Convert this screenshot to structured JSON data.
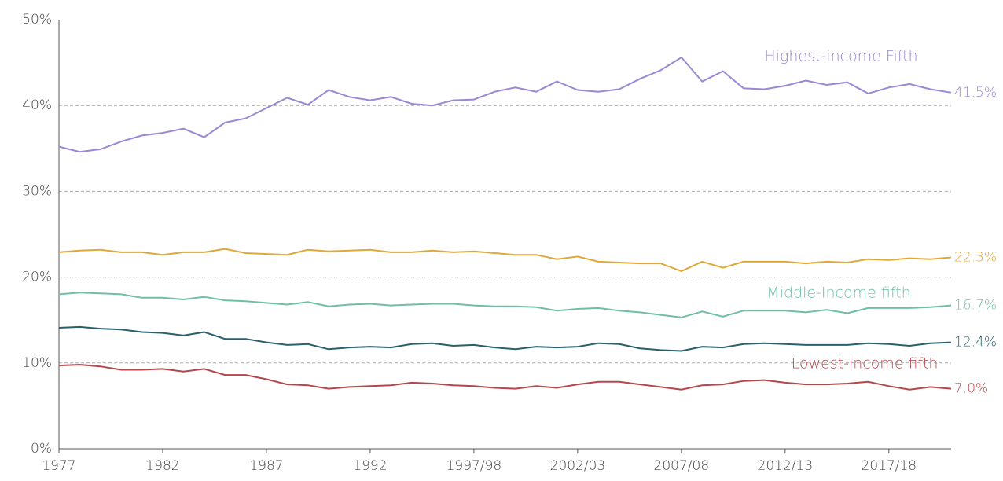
{
  "chart_data": {
    "type": "line",
    "categories": [
      "1977",
      null,
      null,
      null,
      null,
      "1982",
      null,
      null,
      null,
      null,
      "1987",
      null,
      null,
      null,
      null,
      "1992",
      null,
      null,
      null,
      null,
      "1997/98",
      null,
      null,
      null,
      null,
      "2002/03",
      null,
      null,
      null,
      null,
      "2007/08",
      null,
      null,
      null,
      null,
      "2012/13",
      null,
      null,
      null,
      null,
      "2017/18",
      null,
      null,
      null
    ],
    "ylim": [
      0,
      50
    ],
    "yticks": [
      {
        "value": 0,
        "label": "0%"
      },
      {
        "value": 10,
        "label": "10%"
      },
      {
        "value": 20,
        "label": "20%"
      },
      {
        "value": 30,
        "label": "30%"
      },
      {
        "value": 40,
        "label": "40%"
      },
      {
        "value": 50,
        "label": "50%"
      }
    ],
    "grid": true,
    "series": [
      {
        "name": "Highest-income Fifth",
        "color": "#9b87d4",
        "values": [
          35.2,
          34.6,
          34.9,
          35.8,
          36.5,
          36.8,
          37.3,
          36.3,
          38.0,
          38.5,
          39.7,
          40.9,
          40.1,
          41.8,
          41.0,
          40.6,
          41.0,
          40.2,
          40.0,
          40.6,
          40.7,
          41.6,
          42.1,
          41.6,
          42.8,
          41.8,
          41.6,
          41.9,
          43.1,
          44.1,
          45.6,
          42.8,
          44.0,
          42.0,
          41.9,
          42.3,
          42.9,
          42.4,
          42.7,
          41.4,
          42.1,
          42.5,
          41.9,
          41.5
        ],
        "value_labels": [
          null,
          null,
          null,
          null,
          null,
          null,
          null,
          null,
          null,
          null,
          null,
          null,
          null,
          null,
          null,
          null,
          null,
          null,
          null,
          null,
          null,
          null,
          null,
          null,
          null,
          null,
          null,
          null,
          null,
          null,
          null,
          null,
          null,
          null,
          null,
          null,
          null,
          null,
          null,
          null,
          null,
          null,
          null,
          "41.5%"
        ]
      },
      {
        "color": "#e0a83a",
        "values": [
          22.9,
          23.1,
          23.2,
          22.9,
          22.9,
          22.6,
          22.9,
          22.9,
          23.3,
          22.8,
          22.7,
          22.6,
          23.2,
          23.0,
          23.1,
          23.2,
          22.9,
          22.9,
          23.1,
          22.9,
          23.0,
          22.8,
          22.6,
          22.6,
          22.1,
          22.4,
          21.8,
          21.7,
          21.6,
          21.6,
          20.7,
          21.8,
          21.1,
          21.8,
          21.8,
          21.8,
          21.6,
          21.8,
          21.7,
          22.1,
          22.0,
          22.2,
          22.1,
          22.3
        ],
        "value_labels": [
          null,
          null,
          null,
          null,
          null,
          null,
          null,
          null,
          null,
          null,
          null,
          null,
          null,
          null,
          null,
          null,
          null,
          null,
          null,
          null,
          null,
          null,
          null,
          null,
          null,
          null,
          null,
          null,
          null,
          null,
          null,
          null,
          null,
          null,
          null,
          null,
          null,
          null,
          null,
          null,
          null,
          null,
          null,
          "22.3%"
        ]
      },
      {
        "name": "Middle-Income fifth",
        "color": "#6fbfa5",
        "values": [
          18.0,
          18.2,
          18.1,
          18.0,
          17.6,
          17.6,
          17.4,
          17.7,
          17.3,
          17.2,
          17.0,
          16.8,
          17.1,
          16.6,
          16.8,
          16.9,
          16.7,
          16.8,
          16.9,
          16.9,
          16.7,
          16.6,
          16.6,
          16.5,
          16.1,
          16.3,
          16.4,
          16.1,
          15.9,
          15.6,
          15.3,
          16.0,
          15.4,
          16.1,
          16.1,
          16.1,
          15.9,
          16.2,
          15.8,
          16.4,
          16.4,
          16.4,
          16.5,
          16.7
        ],
        "value_labels": [
          null,
          null,
          null,
          null,
          null,
          null,
          null,
          null,
          null,
          null,
          null,
          null,
          null,
          null,
          null,
          null,
          null,
          null,
          null,
          null,
          null,
          null,
          null,
          null,
          null,
          null,
          null,
          null,
          null,
          null,
          null,
          null,
          null,
          null,
          null,
          null,
          null,
          null,
          null,
          null,
          null,
          null,
          null,
          "16.7%"
        ]
      },
      {
        "color": "#2a5f6e",
        "values": [
          14.1,
          14.2,
          14.0,
          13.9,
          13.6,
          13.5,
          13.2,
          13.6,
          12.8,
          12.8,
          12.4,
          12.1,
          12.2,
          11.6,
          11.8,
          11.9,
          11.8,
          12.2,
          12.3,
          12.0,
          12.1,
          11.8,
          11.6,
          11.9,
          11.8,
          11.9,
          12.3,
          12.2,
          11.7,
          11.5,
          11.4,
          11.9,
          11.8,
          12.2,
          12.3,
          12.2,
          12.1,
          12.1,
          12.1,
          12.3,
          12.2,
          12.0,
          12.3,
          12.4
        ],
        "value_labels": [
          null,
          null,
          null,
          null,
          null,
          null,
          null,
          null,
          null,
          null,
          null,
          null,
          null,
          null,
          null,
          null,
          null,
          null,
          null,
          null,
          null,
          null,
          null,
          null,
          null,
          null,
          null,
          null,
          null,
          null,
          null,
          null,
          null,
          null,
          null,
          null,
          null,
          null,
          null,
          null,
          null,
          null,
          null,
          "12.4%"
        ]
      },
      {
        "name": "Lowest-income fifth",
        "color": "#b5474b",
        "values": [
          9.7,
          9.8,
          9.6,
          9.2,
          9.2,
          9.3,
          9.0,
          9.3,
          8.6,
          8.6,
          8.1,
          7.5,
          7.4,
          7.0,
          7.2,
          7.3,
          7.4,
          7.7,
          7.6,
          7.4,
          7.3,
          7.1,
          7.0,
          7.3,
          7.1,
          7.5,
          7.8,
          7.8,
          7.5,
          7.2,
          6.9,
          7.4,
          7.5,
          7.9,
          8.0,
          7.7,
          7.5,
          7.5,
          7.6,
          7.8,
          7.3,
          6.9,
          7.2,
          7.0
        ],
        "value_labels": [
          null,
          null,
          null,
          null,
          null,
          null,
          null,
          null,
          null,
          null,
          null,
          null,
          null,
          null,
          null,
          null,
          null,
          null,
          null,
          null,
          null,
          null,
          null,
          null,
          null,
          null,
          null,
          null,
          null,
          null,
          null,
          null,
          null,
          null,
          null,
          null,
          null,
          null,
          null,
          null,
          null,
          null,
          null,
          "7.0%"
        ]
      }
    ]
  }
}
